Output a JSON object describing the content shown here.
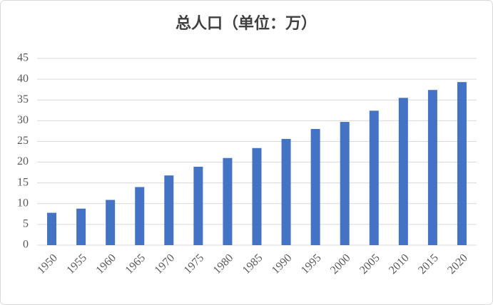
{
  "chart_data": {
    "type": "bar",
    "title": "总人口（单位：万）",
    "categories": [
      "1950",
      "1955",
      "1960",
      "1965",
      "1970",
      "1975",
      "1980",
      "1985",
      "1990",
      "1995",
      "2000",
      "2005",
      "2010",
      "2015",
      "2020"
    ],
    "values": [
      7.8,
      8.8,
      10.9,
      14,
      16.8,
      18.9,
      21,
      23.4,
      25.6,
      28,
      29.7,
      32.4,
      35.5,
      37.4,
      39.3
    ],
    "color": "#4472c4",
    "ylim": [
      0,
      45
    ],
    "yticks": [
      0,
      5,
      10,
      15,
      20,
      25,
      30,
      35,
      40,
      45
    ],
    "grid": true
  }
}
